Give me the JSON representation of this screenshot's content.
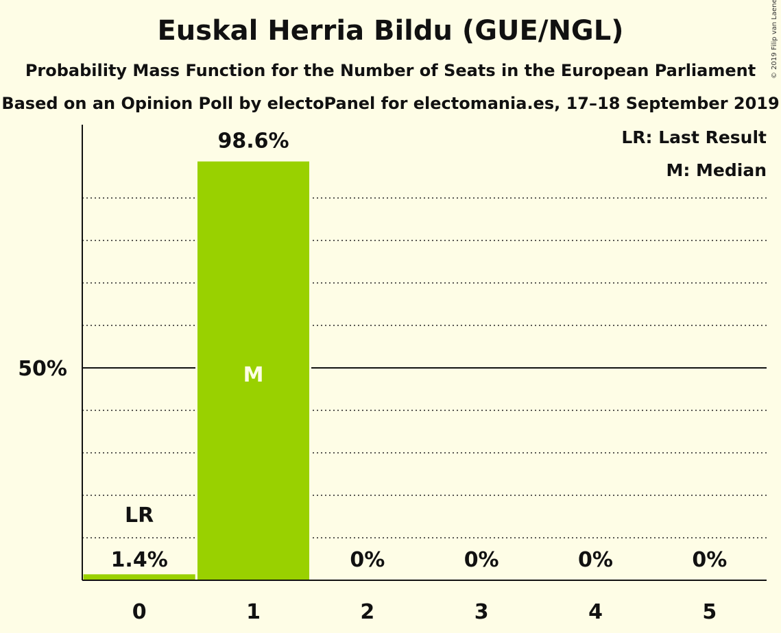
{
  "title": "Euskal Herria Bildu (GUE/NGL)",
  "subtitle": "Probability Mass Function for the Number of Seats in the European Parliament",
  "subtitle2": "Based on an Opinion Poll by electoPanel for electomania.es, 17–18 September 2019",
  "copyright": "© 2019 Filip van Laenen",
  "legend": {
    "last_result": "LR: Last Result",
    "median": "M: Median"
  },
  "colors": {
    "bar": "#99d100",
    "background": "#fefde6",
    "median_text": "#fefde6"
  },
  "chart_data": {
    "type": "bar",
    "categories": [
      "0",
      "1",
      "2",
      "3",
      "4",
      "5"
    ],
    "values": [
      1.4,
      98.6,
      0,
      0,
      0,
      0
    ],
    "value_labels": [
      "1.4%",
      "98.6%",
      "0%",
      "0%",
      "0%",
      "0%"
    ],
    "ylim": [
      0,
      100
    ],
    "y_ticks": [
      {
        "value": 50,
        "label": "50%"
      }
    ],
    "gridlines_dotted": [
      10,
      20,
      30,
      40,
      60,
      70,
      80,
      90
    ],
    "gridline_solid": 50,
    "last_result_category": "0",
    "last_result_marker": "LR",
    "median_category": "1",
    "median_marker": "M"
  }
}
